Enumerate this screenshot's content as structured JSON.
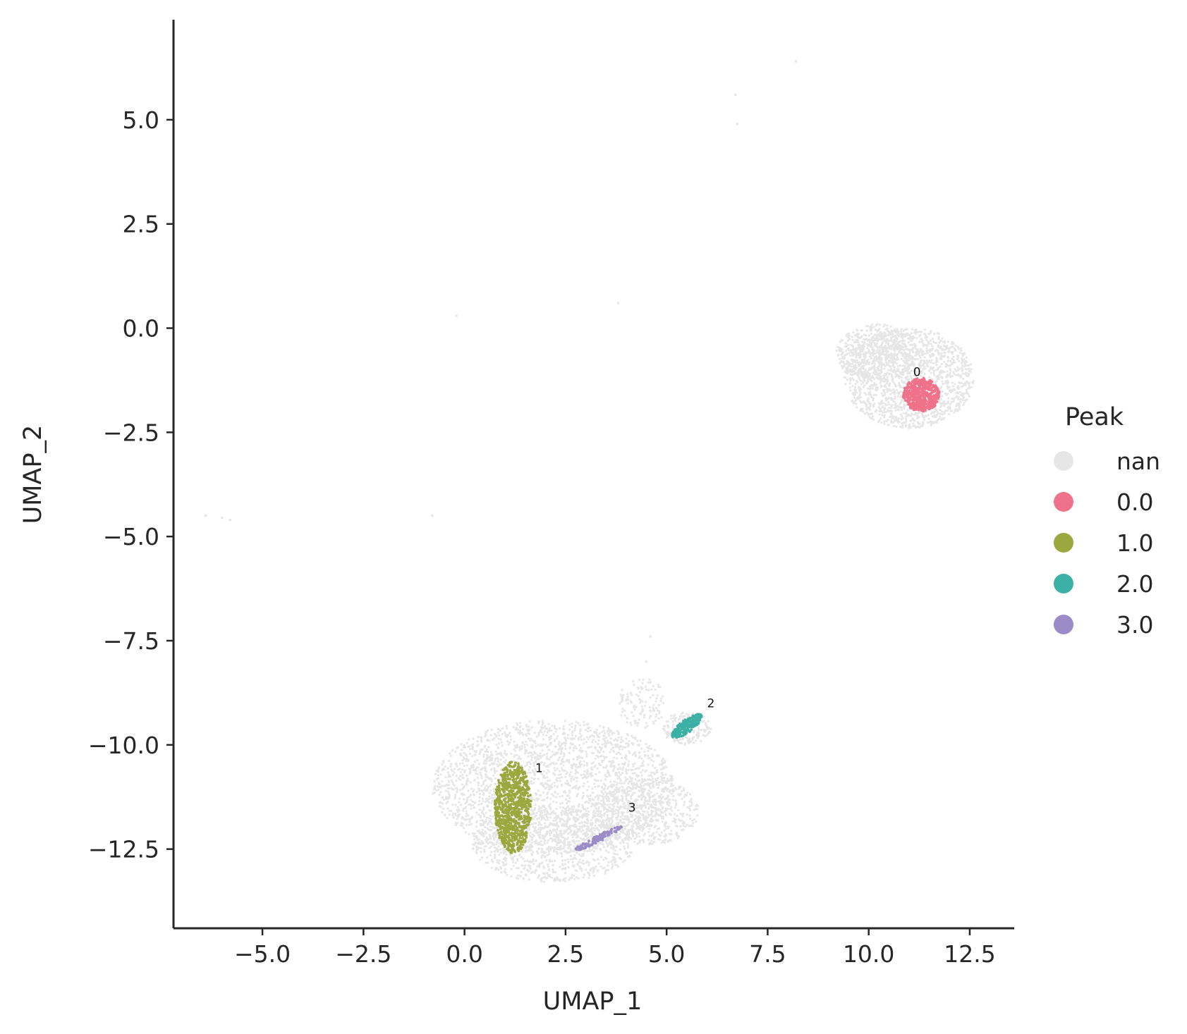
{
  "chart_data": {
    "type": "scatter",
    "xlabel": "UMAP_1",
    "ylabel": "UMAP_2",
    "xlim": [
      -7.2,
      13.6
    ],
    "ylim": [
      -14.4,
      7.4
    ],
    "x_ticks": [
      -5.0,
      -2.5,
      0.0,
      2.5,
      5.0,
      7.5,
      10.0,
      12.5
    ],
    "y_ticks": [
      5.0,
      2.5,
      0.0,
      -2.5,
      -5.0,
      -7.5,
      -10.0,
      -12.5
    ],
    "x_tick_labels": [
      "−5.0",
      "−2.5",
      "0.0",
      "2.5",
      "5.0",
      "7.5",
      "10.0",
      "12.5"
    ],
    "y_tick_labels": [
      "5.0",
      "2.5",
      "0.0",
      "−2.5",
      "−5.0",
      "−7.5",
      "−10.0",
      "−12.5"
    ],
    "grid": false,
    "legend": {
      "title": "Peak",
      "placement": "right",
      "entries": [
        {
          "label": "nan",
          "color": "#e6e6e6"
        },
        {
          "label": "0.0",
          "color": "#f0728a"
        },
        {
          "label": "1.0",
          "color": "#9aa83e"
        },
        {
          "label": "2.0",
          "color": "#3cb0a5"
        },
        {
          "label": "3.0",
          "color": "#9b8cc7"
        }
      ]
    },
    "background_regions": [
      {
        "series": "nan",
        "cx": 11.0,
        "cy": -1.2,
        "rx": 1.6,
        "ry": 1.2,
        "n": 1600
      },
      {
        "series": "nan",
        "cx": 10.2,
        "cy": -0.6,
        "rx": 1.0,
        "ry": 0.7,
        "n": 500
      },
      {
        "series": "nan",
        "cx": 2.2,
        "cy": -11.0,
        "rx": 3.0,
        "ry": 1.6,
        "n": 2600
      },
      {
        "series": "nan",
        "cx": 2.2,
        "cy": -12.4,
        "rx": 2.0,
        "ry": 0.9,
        "n": 900
      },
      {
        "series": "nan",
        "cx": 4.5,
        "cy": -11.6,
        "rx": 1.3,
        "ry": 0.8,
        "n": 500
      },
      {
        "series": "nan",
        "cx": 5.5,
        "cy": -9.6,
        "rx": 0.6,
        "ry": 0.4,
        "n": 180
      },
      {
        "series": "nan",
        "cx": 4.4,
        "cy": -9.0,
        "rx": 0.6,
        "ry": 0.6,
        "n": 120
      }
    ],
    "sparse_points": [
      {
        "x": 6.7,
        "y": 5.6
      },
      {
        "x": 6.75,
        "y": 4.9
      },
      {
        "x": 8.2,
        "y": 6.4
      },
      {
        "x": 3.8,
        "y": 0.6
      },
      {
        "x": -0.2,
        "y": 0.3
      },
      {
        "x": -0.8,
        "y": -4.5
      },
      {
        "x": -6.4,
        "y": -4.5
      },
      {
        "x": -6.0,
        "y": -4.55
      },
      {
        "x": -5.8,
        "y": -4.6
      },
      {
        "x": 4.6,
        "y": -8.5
      },
      {
        "x": 4.5,
        "y": -8.0
      },
      {
        "x": 4.6,
        "y": -7.4
      }
    ],
    "clusters": [
      {
        "label": "0",
        "series": "0.0",
        "cx": 11.3,
        "cy": -1.6,
        "rx": 0.45,
        "ry": 0.4,
        "n": 500,
        "label_x": 11.1,
        "label_y": -1.15
      },
      {
        "label": "1",
        "series": "1.0",
        "cx": 1.2,
        "cy": -11.5,
        "rx": 0.45,
        "ry": 1.1,
        "n": 800,
        "label_x": 1.75,
        "label_y": -10.65
      },
      {
        "label": "2",
        "series": "2.0",
        "cx": 5.5,
        "cy": -9.55,
        "rx": 0.45,
        "ry": 0.15,
        "angle": 35,
        "n": 200,
        "label_x": 6.0,
        "label_y": -9.1
      },
      {
        "label": "3",
        "series": "3.0",
        "cx": 3.3,
        "cy": -12.25,
        "rx": 0.65,
        "ry": 0.08,
        "angle": 26,
        "n": 120,
        "label_x": 4.05,
        "label_y": -11.6
      }
    ]
  }
}
